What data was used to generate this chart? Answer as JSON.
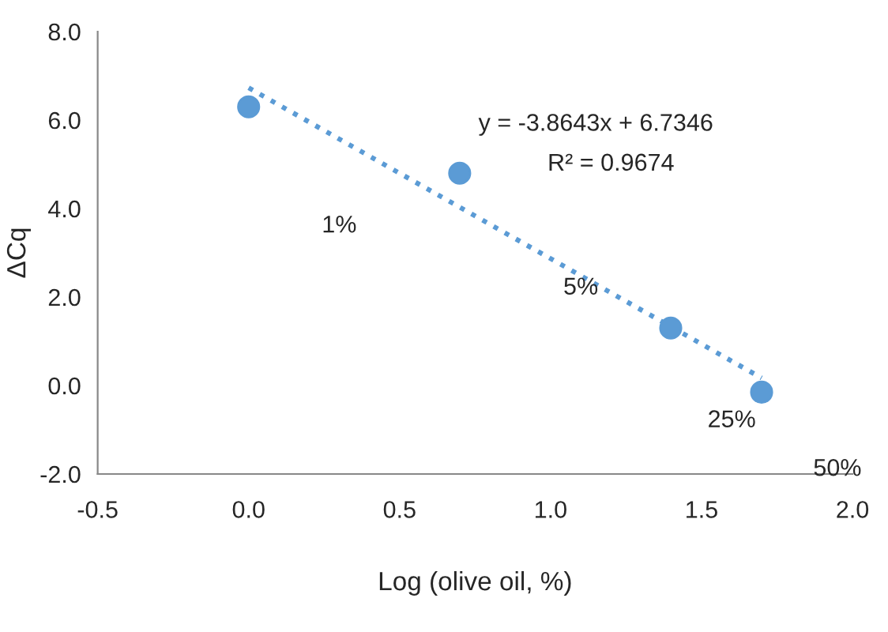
{
  "chart_data": {
    "type": "scatter",
    "xlabel": "Log (olive oil, %)",
    "ylabel": "ΔCq",
    "series": [
      {
        "color": "#5b9bd5",
        "x": [
          0,
          0.699,
          1.398,
          1.699
        ],
        "values": [
          6.3,
          4.8,
          1.3,
          -0.15
        ],
        "marker": "circle"
      },
      {
        "type": "line",
        "color": "#5b9bd5",
        "x": [
          0,
          1.699
        ],
        "values": [
          6.73,
          0.17
        ],
        "line_style": "dotted",
        "marker": "none"
      }
    ],
    "xlim": [
      -0.5,
      2.0
    ],
    "ylim": [
      -2.0,
      8.0
    ],
    "xticks": [
      {
        "value": -0.5,
        "label": "-0.5"
      },
      {
        "value": 0,
        "label": "0.0"
      },
      {
        "value": 0.5,
        "label": "0.5"
      },
      {
        "value": 1.0,
        "label": "1.0"
      },
      {
        "value": 1.5,
        "label": "1.5"
      },
      {
        "value": 2.0,
        "label": "2.0"
      }
    ],
    "yticks": [
      {
        "value": -2,
        "label": "-2.0"
      },
      {
        "value": 0,
        "label": "0.0"
      },
      {
        "value": 2,
        "label": "2.0"
      },
      {
        "value": 4,
        "label": "4.0"
      },
      {
        "value": 6,
        "label": "6.0"
      },
      {
        "value": 8,
        "label": "8.0"
      }
    ],
    "grid": false,
    "legend": false,
    "annotations": [
      "y = -3.8643x + 6.7346",
      "R² = 0.9674",
      "1%",
      "5%",
      "25%",
      "50%"
    ]
  }
}
